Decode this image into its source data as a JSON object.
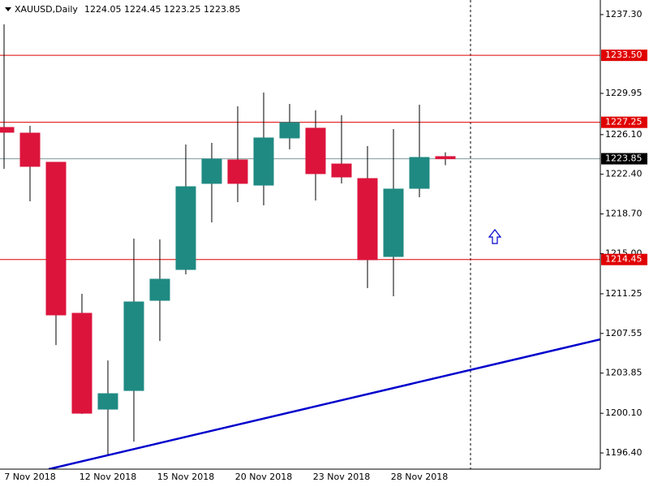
{
  "chart_data": {
    "type": "candlestick",
    "title": "XAUUSD,Daily",
    "categories": [
      null,
      "7 Nov 2018",
      null,
      null,
      "12 Nov 2018",
      null,
      null,
      "15 Nov 2018",
      null,
      null,
      "20 Nov 2018",
      null,
      null,
      "23 Nov 2018",
      null,
      null,
      "28 Nov 2018",
      null
    ],
    "open": [
      1226.77,
      1226.24,
      1223.52,
      1209.43,
      1200.49,
      1202.23,
      1210.64,
      1213.52,
      1221.55,
      1223.74,
      1221.39,
      1225.79,
      1226.7,
      1223.36,
      1222.0,
      1214.73,
      1221.09,
      1224.05
    ],
    "high": [
      1236.39,
      1226.92,
      1223.52,
      1211.25,
      1205.03,
      1216.4,
      1216.32,
      1225.18,
      1225.33,
      1228.74,
      1230.03,
      1228.97,
      1228.36,
      1227.91,
      1225.03,
      1226.62,
      1228.89,
      1224.45
    ],
    "low": [
      1222.91,
      1219.88,
      1206.47,
      1200.04,
      1196.25,
      1197.46,
      1206.85,
      1213.06,
      1217.91,
      1219.8,
      1219.5,
      1224.73,
      1219.96,
      1221.55,
      1211.78,
      1211.02,
      1220.26,
      1223.25
    ],
    "close": [
      1226.32,
      1223.14,
      1209.28,
      1200.11,
      1201.93,
      1210.49,
      1212.61,
      1221.24,
      1223.82,
      1221.55,
      1225.79,
      1227.23,
      1222.46,
      1222.15,
      1214.43,
      1221.02,
      1223.97,
      1223.85
    ],
    "up_color": "#1f8a82",
    "down_color": "#dc143c",
    "ylim": [
      1194.89,
      1238.66
    ],
    "yticks": [
      {
        "value": 1237.3,
        "label": "1237.30"
      },
      1229.95,
      {
        "value": 1226.1,
        "label": "1226.10"
      },
      {
        "value": 1222.4,
        "label": "1222.40"
      },
      {
        "value": 1218.7,
        "label": "1218.70"
      },
      {
        "value": 1215,
        "label": "1215.00"
      },
      1211.25,
      1207.55,
      1203.85,
      {
        "value": 1200.1,
        "label": "1200.10"
      },
      {
        "value": 1196.4,
        "label": "1196.40"
      }
    ],
    "hlines": [
      {
        "value": 1233.5,
        "label": "1233.50"
      },
      {
        "value": 1227.25
      },
      {
        "value": 1214.45
      }
    ],
    "hline_color": "#e00000",
    "bid": 1223.85,
    "bid_color": "#7f9a9c",
    "trendline": {
      "x": [
        1.72,
        22.97
      ],
      "values": [
        1194.89,
        1207.0
      ],
      "color": "#0000cc"
    }
  }
}
